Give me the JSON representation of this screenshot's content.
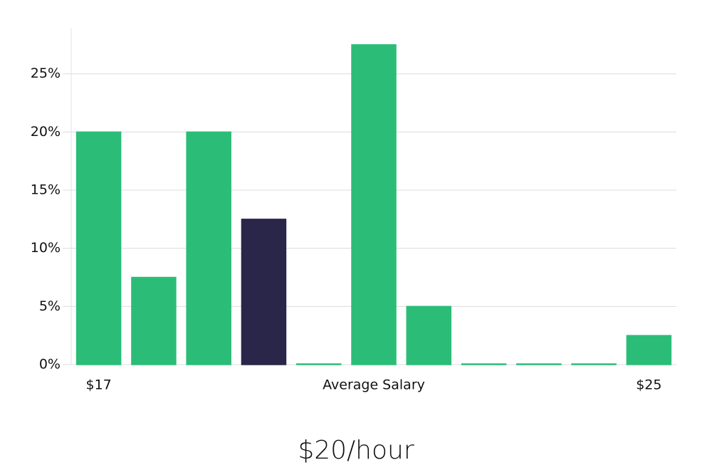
{
  "chart_data": {
    "type": "bar",
    "categories": [
      "$17",
      null,
      null,
      null,
      null,
      "Average Salary",
      null,
      null,
      null,
      null,
      "$25"
    ],
    "values": [
      20,
      7.5,
      20,
      12.5,
      0,
      27.5,
      5,
      0,
      0,
      0,
      2.5
    ],
    "colors": [
      "#2bbd77",
      "#2bbd77",
      "#2bbd77",
      "#29264a",
      "#2bbd77",
      "#2bbd77",
      "#2bbd77",
      "#2bbd77",
      "#2bbd77",
      "#2bbd77",
      "#2bbd77"
    ],
    "ylim": [
      0,
      28.9
    ],
    "yticks": [
      {
        "value": 0,
        "label": "0%"
      },
      {
        "value": 5,
        "label": "5%"
      },
      {
        "value": 10,
        "label": "10%"
      },
      {
        "value": 15,
        "label": "15%"
      },
      {
        "value": 20,
        "label": "20%"
      },
      {
        "value": 25,
        "label": "25%"
      }
    ],
    "grid": true,
    "caption": "$20/hour"
  }
}
